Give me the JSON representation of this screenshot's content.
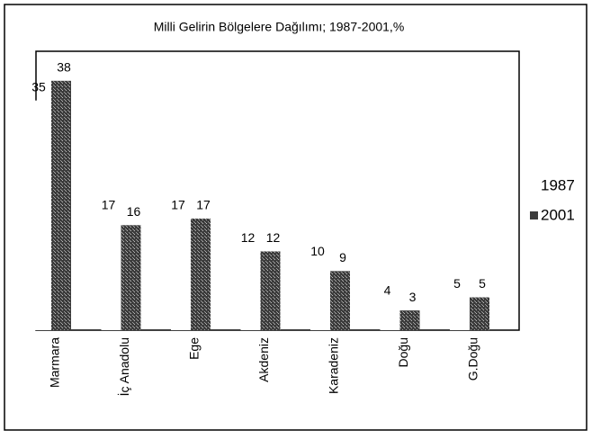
{
  "chart_data": {
    "type": "bar",
    "title": "Milli Gelirin Bölgelere Dağılımı; 1987-2001,%",
    "categories": [
      "Marmara",
      "İç Anadolu",
      "Ege",
      "Akdeniz",
      "Karadeniz",
      "Doğu",
      "G.Doğu"
    ],
    "series": [
      {
        "name": "1987",
        "color": "#ffffff",
        "values": [
          35,
          17,
          17,
          12,
          10,
          4,
          5
        ]
      },
      {
        "name": "2001",
        "color": "#3c3c3c",
        "values": [
          38,
          16,
          17,
          12,
          9,
          3,
          5
        ]
      }
    ],
    "ylim": [
      0,
      42.5
    ],
    "legend": "right"
  }
}
